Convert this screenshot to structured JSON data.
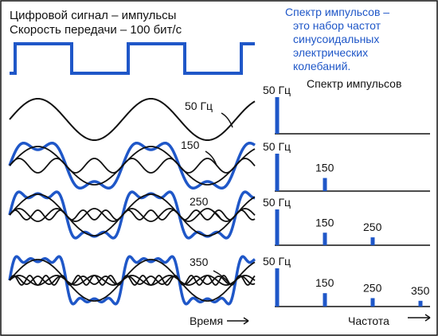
{
  "header": {
    "line1": "Цифровой сигнал –  импульсы",
    "line2": "Скорость передачи – 100 бит/с"
  },
  "note": {
    "lines": [
      "Спектр импульсов –",
      "это набор частот",
      "синусоидальных",
      "электрических",
      "колебаний."
    ],
    "color": "#1f57c8"
  },
  "spectrum_title": "Спектр импульсов",
  "harmonic_labels": {
    "f50": "50 Гц",
    "f150": "150",
    "f250": "250",
    "f350": "350"
  },
  "axes": {
    "time": "Время",
    "frequency": "Частота"
  },
  "colors": {
    "signal": "#1f57c8",
    "sine": "#111111",
    "axis": "#111111"
  },
  "signal": {
    "bit_rate_bps": 100,
    "fundamental_hz": 50,
    "harmonics_hz": [
      50,
      150,
      250,
      350
    ]
  },
  "spectrum_rows": [
    {
      "frequencies_hz": [
        50
      ],
      "labels": [
        "50 Гц"
      ]
    },
    {
      "frequencies_hz": [
        50,
        150
      ],
      "labels": [
        "50 Гц",
        "150"
      ]
    },
    {
      "frequencies_hz": [
        50,
        150,
        250
      ],
      "labels": [
        "50 Гц",
        "150",
        "250"
      ]
    },
    {
      "frequencies_hz": [
        50,
        150,
        250,
        350
      ],
      "labels": [
        "50 Гц",
        "150",
        "250",
        "350"
      ]
    }
  ]
}
